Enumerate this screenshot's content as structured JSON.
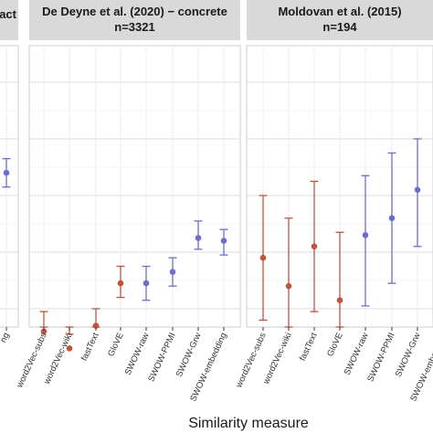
{
  "chart_data": {
    "type": "scatter",
    "subtype": "point-range",
    "xlabel": "Similarity measure",
    "ylabel": "",
    "grid": true,
    "colors": {
      "red": "#c0533e",
      "blue": "#6b6fc9",
      "strip": "#d9d9d9",
      "grid": "#dddddd"
    },
    "ylim": [
      0,
      10
    ],
    "panels": [
      {
        "id": "left",
        "title_lines": [
          "act"
        ],
        "categories": [
          "ng"
        ],
        "points": [
          {
            "category": "ng",
            "y": 6.8,
            "lo": 6.3,
            "hi": 7.3,
            "color": "blue"
          }
        ]
      },
      {
        "id": "middle",
        "title_lines": [
          "De Deyne et al. (2020) − concrete",
          "n=3321"
        ],
        "categories": [
          "word2Vec-subs",
          "word2Vec-wiki",
          "fastText",
          "GloVE",
          "SWOW-raw",
          "SWOW-PPMI",
          "SWOW-Grw",
          "SWOW-embedding"
        ],
        "points": [
          {
            "category": "word2Vec-subs",
            "y": 1.2,
            "lo": 0.6,
            "hi": 1.9,
            "color": "red"
          },
          {
            "category": "word2Vec-wiki",
            "y": 0.6,
            "lo": 0.1,
            "hi": 1.1,
            "color": "red"
          },
          {
            "category": "fastText",
            "y": 1.4,
            "lo": 0.8,
            "hi": 2.0,
            "color": "red"
          },
          {
            "category": "GloVE",
            "y": 2.9,
            "lo": 2.4,
            "hi": 3.5,
            "color": "red"
          },
          {
            "category": "SWOW-raw",
            "y": 2.9,
            "lo": 2.3,
            "hi": 3.5,
            "color": "blue"
          },
          {
            "category": "SWOW-PPMI",
            "y": 3.3,
            "lo": 2.8,
            "hi": 3.8,
            "color": "blue"
          },
          {
            "category": "SWOW-Grw",
            "y": 4.5,
            "lo": 4.1,
            "hi": 5.1,
            "color": "blue"
          },
          {
            "category": "SWOW-embedding",
            "y": 4.4,
            "lo": 3.9,
            "hi": 4.8,
            "color": "blue"
          }
        ]
      },
      {
        "id": "right",
        "title_lines": [
          "Moldovan et al. (2015)",
          "n=194"
        ],
        "categories": [
          "word2Vec-subs",
          "word2Vec-wiki",
          "fastText",
          "GloVE",
          "SWOW-raw",
          "SWOW-PPMI",
          "SWOW-Grw",
          "SWOW-embedding"
        ],
        "points": [
          {
            "category": "word2Vec-subs",
            "y": 3.8,
            "lo": 1.6,
            "hi": 6.0,
            "color": "red"
          },
          {
            "category": "word2Vec-wiki",
            "y": 2.8,
            "lo": 0.4,
            "hi": 5.2,
            "color": "red"
          },
          {
            "category": "fastText",
            "y": 4.2,
            "lo": 1.9,
            "hi": 6.5,
            "color": "red"
          },
          {
            "category": "GloVE",
            "y": 2.3,
            "lo": -0.1,
            "hi": 4.7,
            "color": "red"
          },
          {
            "category": "SWOW-raw",
            "y": 4.6,
            "lo": 2.1,
            "hi": 6.7,
            "color": "blue"
          },
          {
            "category": "SWOW-PPMI",
            "y": 5.2,
            "lo": 2.9,
            "hi": 7.5,
            "color": "blue"
          },
          {
            "category": "SWOW-Grw",
            "y": 6.2,
            "lo": 4.2,
            "hi": 8.0,
            "color": "blue"
          },
          {
            "category": "SWOW-embedding",
            "y": 0,
            "lo": 0,
            "hi": 0,
            "color": "blue",
            "hidden": true
          }
        ]
      }
    ]
  }
}
